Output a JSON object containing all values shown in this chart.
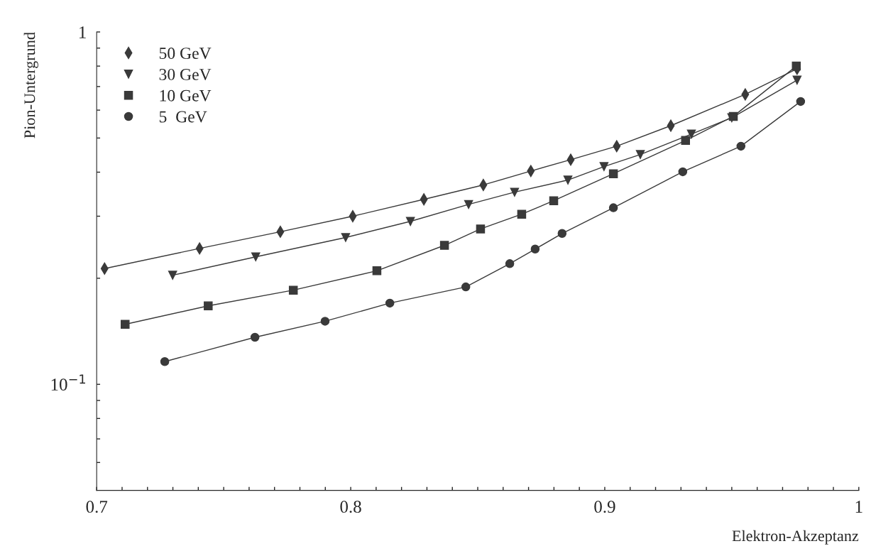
{
  "chart_data": {
    "type": "line",
    "xlabel": "Elektron-Akzeptanz",
    "ylabel": "Pion-Untergrund",
    "log": "y",
    "grid": false,
    "legend": "top left",
    "xlim": [
      0.7,
      1.0
    ],
    "xticks": [
      0.7,
      {
        "value": 0.71,
        "label": null
      },
      {
        "value": 0.72,
        "label": null
      },
      {
        "value": 0.73,
        "label": null
      },
      {
        "value": 0.74,
        "label": null
      },
      {
        "value": 0.75,
        "label": null
      },
      {
        "value": 0.76,
        "label": null
      },
      {
        "value": 0.77,
        "label": null
      },
      {
        "value": 0.78,
        "label": null
      },
      {
        "value": 0.79,
        "label": null
      },
      0.8,
      {
        "value": 0.81,
        "label": null
      },
      {
        "value": 0.82,
        "label": null
      },
      {
        "value": 0.83,
        "label": null
      },
      {
        "value": 0.84,
        "label": null
      },
      {
        "value": 0.85,
        "label": null
      },
      {
        "value": 0.86,
        "label": null
      },
      {
        "value": 0.87,
        "label": null
      },
      {
        "value": 0.88,
        "label": null
      },
      {
        "value": 0.89,
        "label": null
      },
      0.9,
      {
        "value": 0.91,
        "label": null
      },
      {
        "value": 0.92,
        "label": null
      },
      {
        "value": 0.93,
        "label": null
      },
      {
        "value": 0.94,
        "label": null
      },
      {
        "value": 0.95,
        "label": null
      },
      {
        "value": 0.96,
        "label": null
      },
      {
        "value": 0.97,
        "label": null
      },
      {
        "value": 0.98,
        "label": null
      },
      {
        "value": 0.99,
        "label": null
      },
      1
    ],
    "ylim": [
      0.05,
      1
    ],
    "yticks": [
      {
        "value": 0.06,
        "label": null
      },
      {
        "value": 0.07,
        "label": null
      },
      {
        "value": 0.08,
        "label": null
      },
      {
        "value": 0.09,
        "label": null
      },
      {
        "value": 0.1,
        "label": "10$^{−1}$"
      },
      {
        "value": 0.2,
        "label": null
      },
      {
        "value": 0.3,
        "label": null
      },
      {
        "value": 0.4,
        "label": null
      },
      {
        "value": 0.5,
        "label": null
      },
      {
        "value": 0.6,
        "label": null
      },
      {
        "value": 0.7,
        "label": null
      },
      {
        "value": 0.8,
        "label": null
      },
      {
        "value": 0.9,
        "label": null
      },
      1
    ],
    "series": [
      {
        "name": "50 GeV",
        "color": "#3a3a3a",
        "marker": "diamond",
        "x": [
          0.7031,
          0.7405,
          0.7723,
          0.8008,
          0.8288,
          0.8522,
          0.8709,
          0.8866,
          0.9047,
          0.926,
          0.9553,
          0.9757
        ],
        "values": [
          0.213,
          0.243,
          0.271,
          0.3,
          0.335,
          0.368,
          0.403,
          0.434,
          0.474,
          0.542,
          0.665,
          0.786
        ]
      },
      {
        "name": "30 GeV",
        "color": "#3a3a3a",
        "marker": "triangle",
        "x": [
          0.7299,
          0.7626,
          0.798,
          0.8235,
          0.8464,
          0.8645,
          0.8855,
          0.8997,
          0.914,
          0.9341,
          0.95,
          0.9757
        ],
        "values": [
          0.204,
          0.23,
          0.261,
          0.29,
          0.324,
          0.351,
          0.38,
          0.415,
          0.449,
          0.513,
          0.571,
          0.73
        ]
      },
      {
        "name": "10 GeV",
        "color": "#3a3a3a",
        "marker": "square",
        "x": [
          0.7112,
          0.7439,
          0.7774,
          0.8103,
          0.8369,
          0.8511,
          0.8673,
          0.8799,
          0.9034,
          0.9318,
          0.9506,
          0.9754
        ],
        "values": [
          0.148,
          0.167,
          0.185,
          0.21,
          0.248,
          0.276,
          0.304,
          0.332,
          0.396,
          0.492,
          0.576,
          0.8
        ]
      },
      {
        "name": "5  GeV",
        "color": "#3a3a3a",
        "marker": "circle",
        "x": [
          0.7268,
          0.7623,
          0.7899,
          0.8154,
          0.8453,
          0.8626,
          0.8726,
          0.8832,
          0.9034,
          0.9307,
          0.9536,
          0.9771
        ],
        "values": [
          0.116,
          0.136,
          0.151,
          0.17,
          0.189,
          0.22,
          0.242,
          0.268,
          0.317,
          0.401,
          0.474,
          0.635
        ]
      }
    ]
  }
}
